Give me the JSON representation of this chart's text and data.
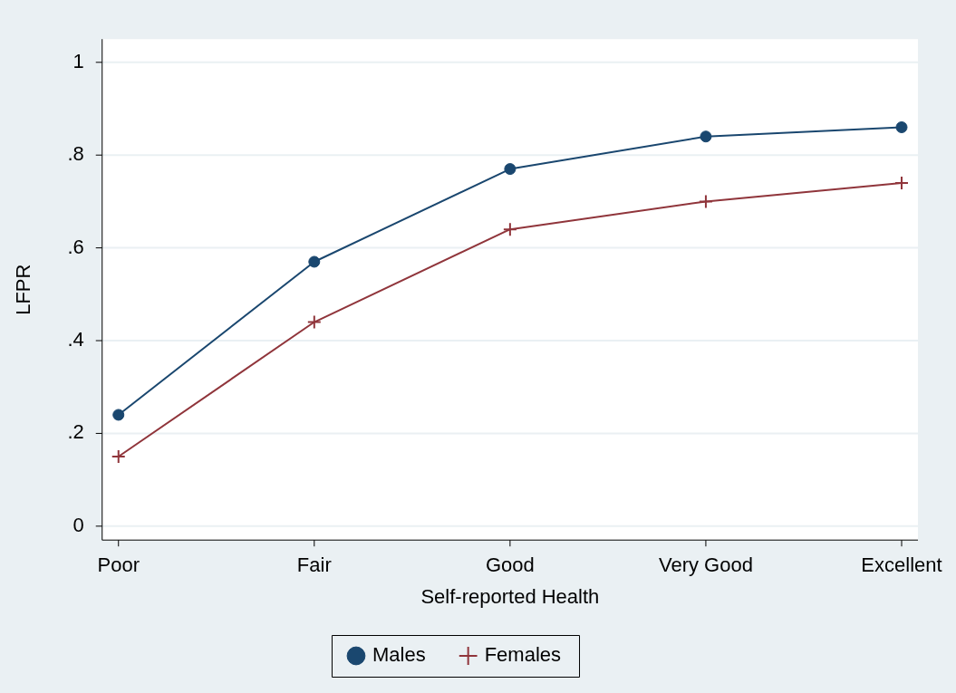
{
  "chart_data": {
    "type": "line",
    "xlabel": "Self-reported Health",
    "ylabel": "LFPR",
    "categories": [
      "Poor",
      "Fair",
      "Good",
      "Very Good",
      "Excellent"
    ],
    "series": [
      {
        "name": "Males",
        "color": "#1a476f",
        "marker": "circle",
        "values": [
          0.24,
          0.57,
          0.77,
          0.84,
          0.86
        ]
      },
      {
        "name": "Females",
        "color": "#90353b",
        "marker": "cross",
        "values": [
          0.15,
          0.44,
          0.64,
          0.7,
          0.74
        ]
      }
    ],
    "ylim": [
      -0.03,
      1.05
    ],
    "yticks": [
      {
        "value": 0,
        "label": "0"
      },
      {
        "value": 0.2,
        "label": ".2"
      },
      {
        "value": 0.4,
        "label": ".4"
      },
      {
        "value": 0.6,
        "label": ".6"
      },
      {
        "value": 0.8,
        "label": ".8"
      },
      {
        "value": 1,
        "label": "1"
      }
    ],
    "grid": "y",
    "legend": "bottom",
    "line_style": "solid"
  }
}
